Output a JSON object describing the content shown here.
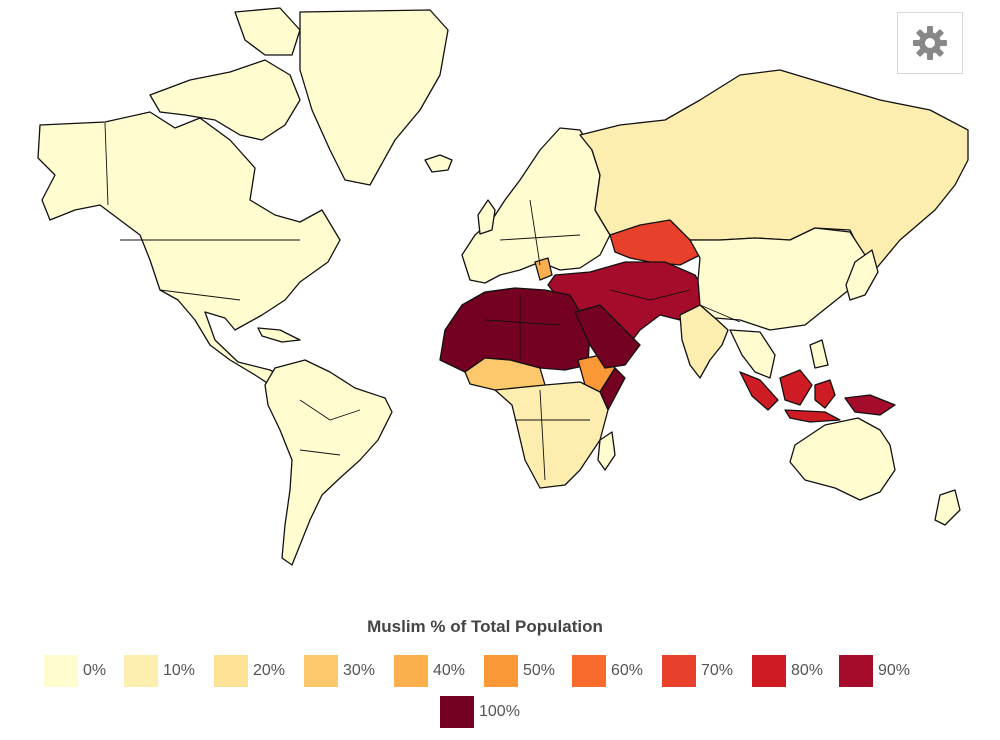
{
  "map": {
    "type": "choropleth",
    "base_color": "#fffccf",
    "category_colors": {
      "0%": "#fffccf",
      "10%": "#fdeeb0",
      "20%": "#fde195",
      "30%": "#fcc86b",
      "40%": "#fbb04d",
      "50%": "#fa9837",
      "60%": "#f86b2d",
      "70%": "#e8402a",
      "80%": "#cf1b23",
      "90%": "#a50b2a",
      "100%": "#740022"
    }
  },
  "settings": {
    "icon": "gear-icon"
  },
  "legend": {
    "title": "Muslim % of Total Population",
    "items": [
      {
        "label": "0%",
        "color": "#fffccf"
      },
      {
        "label": "10%",
        "color": "#fdeeb0"
      },
      {
        "label": "20%",
        "color": "#fde195"
      },
      {
        "label": "30%",
        "color": "#fcc86b"
      },
      {
        "label": "40%",
        "color": "#fbb04d"
      },
      {
        "label": "50%",
        "color": "#fa9837"
      },
      {
        "label": "60%",
        "color": "#f86b2d"
      },
      {
        "label": "70%",
        "color": "#e8402a"
      },
      {
        "label": "80%",
        "color": "#cf1b23"
      },
      {
        "label": "90%",
        "color": "#a50b2a"
      },
      {
        "label": "100%",
        "color": "#740022"
      }
    ]
  }
}
